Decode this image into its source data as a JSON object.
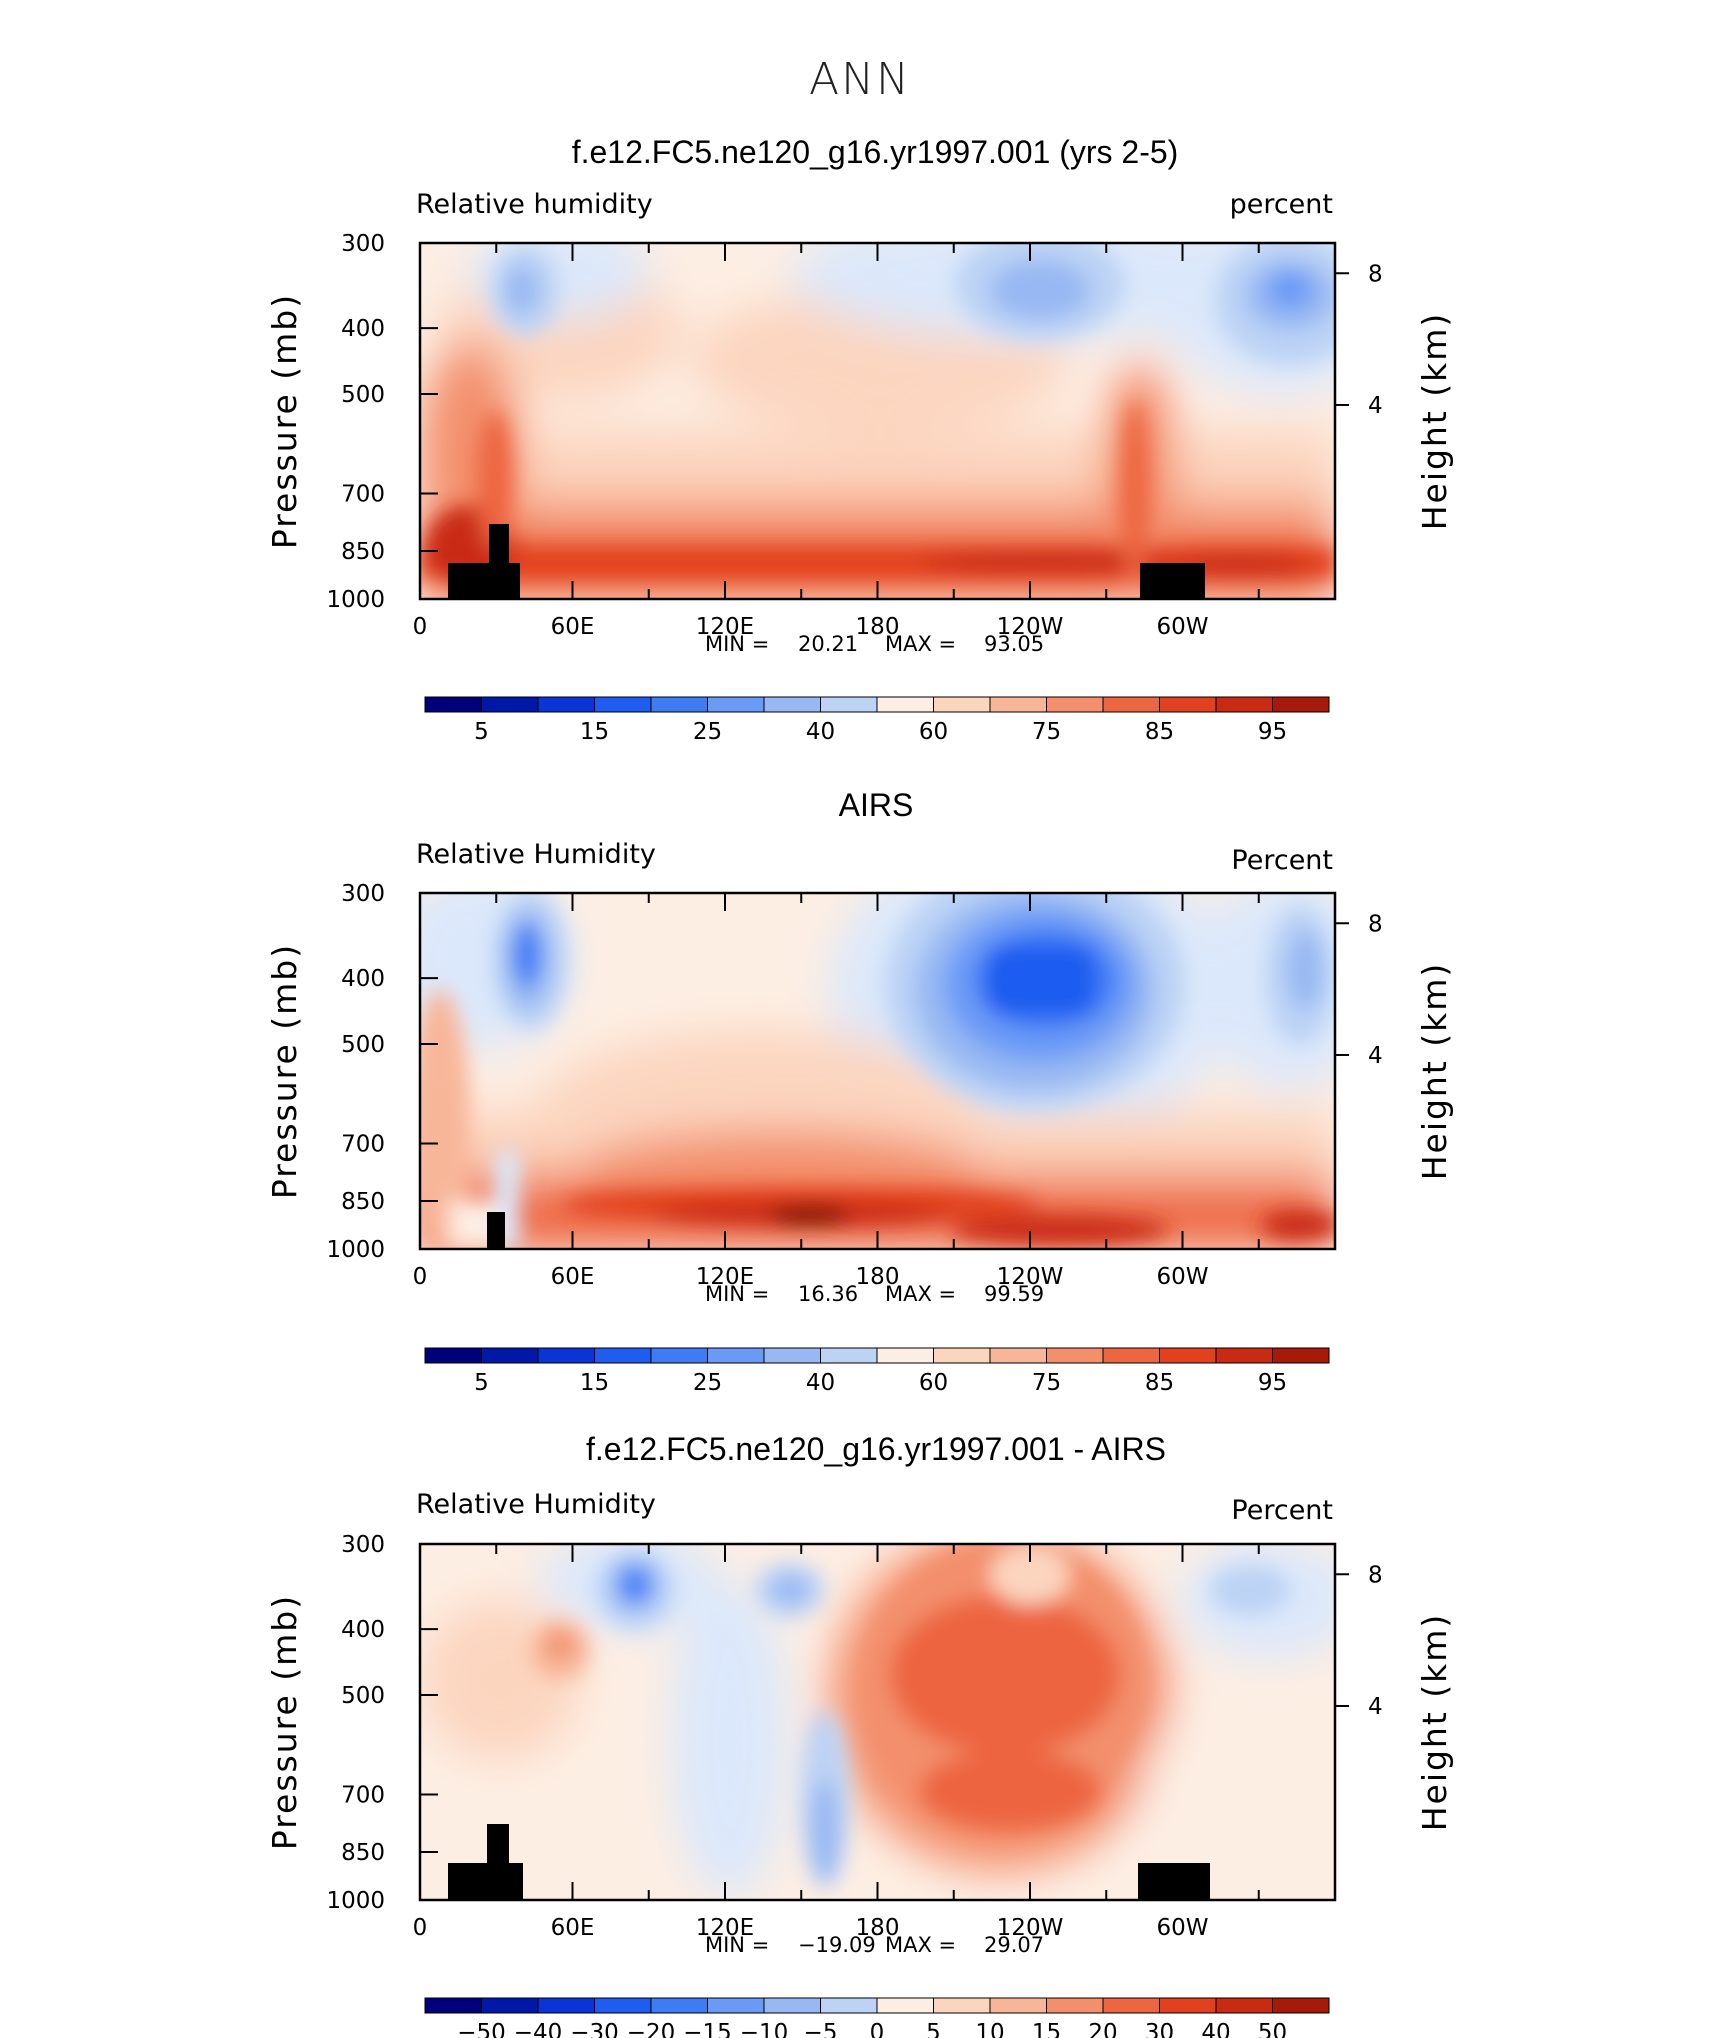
{
  "figure_title": "ANN",
  "chart_data": [
    {
      "type": "heatmap",
      "title": "f.e12.FC5.ne120_g16.yr1997.001 (yrs 2-5)",
      "variable_label": "Relative humidity",
      "units_label": "percent",
      "ylabel": "Pressure (mb)",
      "ylabel_right": "Height (km)",
      "x_ticks": [
        "0",
        "60E",
        "120E",
        "180",
        "120W",
        "60W"
      ],
      "y_ticks": [
        "300",
        "400",
        "500",
        "700",
        "850",
        "1000"
      ],
      "y_ticks_right": [
        "8",
        "4"
      ],
      "min_label": "MIN =",
      "min_value": "20.21",
      "max_label": "MAX =",
      "max_value": "93.05",
      "colorbar_labels": [
        "5",
        "15",
        "25",
        "40",
        "60",
        "75",
        "85",
        "95"
      ]
    },
    {
      "type": "heatmap",
      "title": "AIRS",
      "variable_label": "Relative Humidity",
      "units_label": "Percent",
      "ylabel": "Pressure (mb)",
      "ylabel_right": "Height (km)",
      "x_ticks": [
        "0",
        "60E",
        "120E",
        "180",
        "120W",
        "60W"
      ],
      "y_ticks": [
        "300",
        "400",
        "500",
        "700",
        "850",
        "1000"
      ],
      "y_ticks_right": [
        "8",
        "4"
      ],
      "min_label": "MIN =",
      "min_value": "16.36",
      "max_label": "MAX =",
      "max_value": "99.59",
      "colorbar_labels": [
        "5",
        "15",
        "25",
        "40",
        "60",
        "75",
        "85",
        "95"
      ]
    },
    {
      "type": "heatmap",
      "title": "f.e12.FC5.ne120_g16.yr1997.001 - AIRS",
      "variable_label": "Relative Humidity",
      "units_label": "Percent",
      "ylabel": "Pressure (mb)",
      "ylabel_right": "Height (km)",
      "x_ticks": [
        "0",
        "60E",
        "120E",
        "180",
        "120W",
        "60W"
      ],
      "y_ticks": [
        "300",
        "400",
        "500",
        "700",
        "850",
        "1000"
      ],
      "y_ticks_right": [
        "8",
        "4"
      ],
      "min_label": "MIN =",
      "min_value": "−19.09",
      "max_label": "MAX =",
      "max_value": "29.07",
      "colorbar_labels": [
        "−50",
        "−40",
        "−30",
        "−20",
        "−15",
        "−10",
        "−5",
        "0",
        "5",
        "10",
        "15",
        "20",
        "30",
        "40",
        "50"
      ]
    }
  ],
  "colors": {
    "palette": [
      "#00007a",
      "#0018a8",
      "#0a34d6",
      "#1f5cf0",
      "#3e7bf5",
      "#6b9af6",
      "#97b8f3",
      "#bcd3f5",
      "#dbe8fb",
      "#fdeee3",
      "#fcd5bf",
      "#f8b699",
      "#f38f6c",
      "#ed6541",
      "#e2411f",
      "#c92a12",
      "#a71a0a",
      "#7d0a03"
    ]
  }
}
